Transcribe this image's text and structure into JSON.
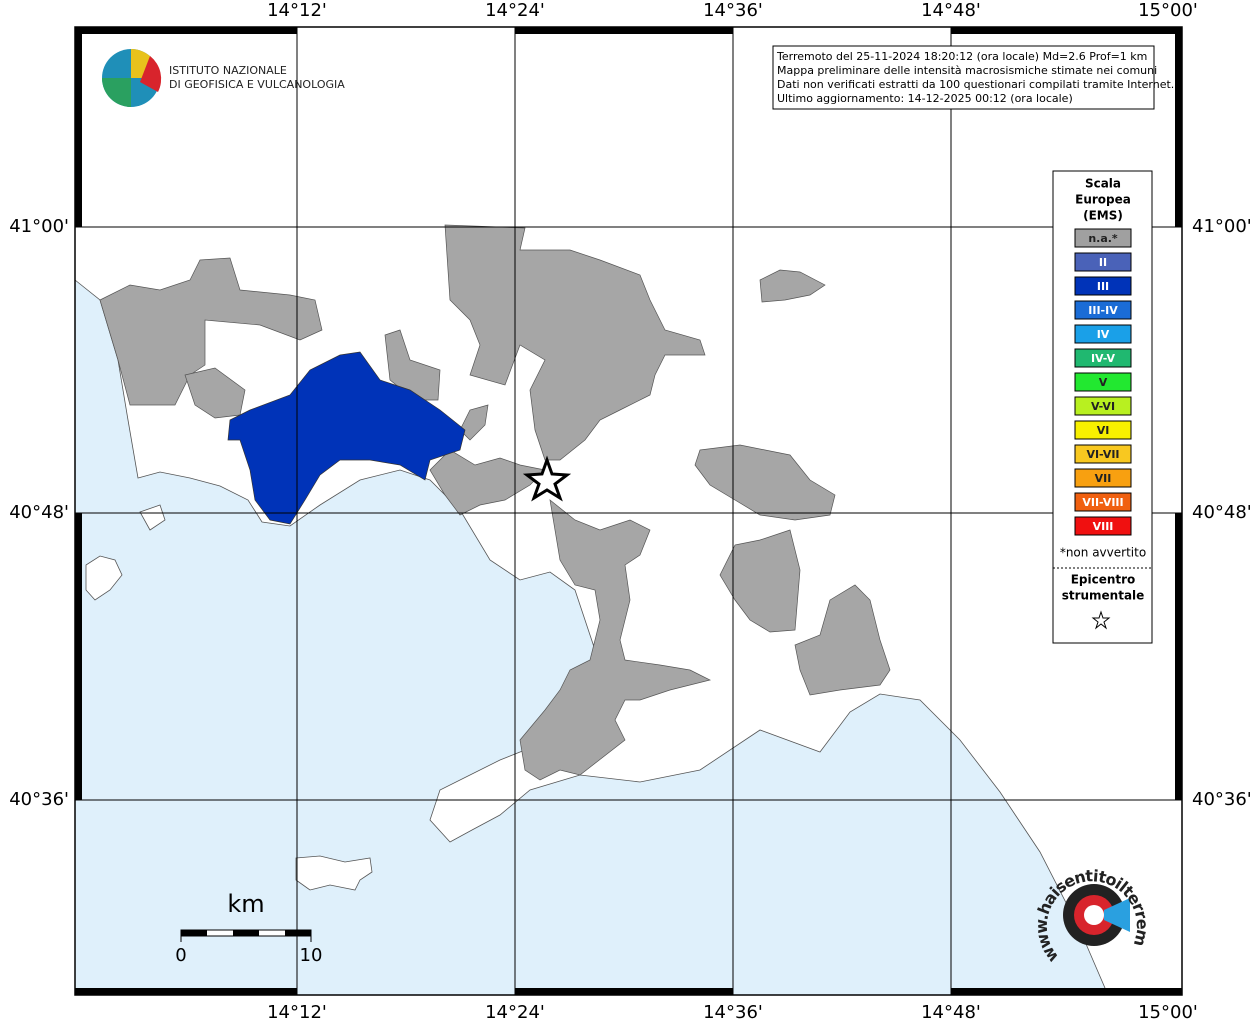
{
  "map": {
    "info_box": [
      "Terremoto del 25-11-2024 18:20:12 (ora locale) Md=2.6 Prof=1 km",
      "Mappa preliminare delle intensità macrosismiche stimate nei comuni",
      "Dati non verificati estratti da 100 questionari compilati tramite Internet.",
      "Ultimo aggiornamento: 14-12-2025 00:12 (ora locale)"
    ],
    "institute": [
      "ISTITUTO NAZIONALE",
      "DI GEOFISICA E VULCANOLOGIA"
    ],
    "lon_labels": [
      "14°12'",
      "14°24'",
      "14°36'",
      "14°48'",
      "15°00'"
    ],
    "lat_labels": [
      "41°00'",
      "40°48'",
      "40°36'"
    ],
    "legend": {
      "title": [
        "Scala",
        "Europea",
        "(EMS)"
      ],
      "items": [
        {
          "label": "n.a.*",
          "color": "#a0a0a0"
        },
        {
          "label": "II",
          "color": "#4a62b8"
        },
        {
          "label": "III",
          "color": "#0033b8"
        },
        {
          "label": "III-IV",
          "color": "#1a6cd6"
        },
        {
          "label": "IV",
          "color": "#1aa0e8"
        },
        {
          "label": "IV-V",
          "color": "#20b870"
        },
        {
          "label": "V",
          "color": "#22e830"
        },
        {
          "label": "V-VI",
          "color": "#b8f020"
        },
        {
          "label": "VI",
          "color": "#f8f000"
        },
        {
          "label": "VI-VII",
          "color": "#f8c820"
        },
        {
          "label": "VII",
          "color": "#f8a010"
        },
        {
          "label": "VII-VIII",
          "color": "#f06010"
        },
        {
          "label": "VIII",
          "color": "#f01010"
        }
      ],
      "note": "*non avvertito",
      "epicenter": [
        "Epicentro",
        "strumentale"
      ]
    },
    "scale_bar": {
      "unit": "km",
      "labels": [
        "0",
        "10"
      ]
    },
    "site_logo": "www.haisentitoilterremoto.it"
  }
}
